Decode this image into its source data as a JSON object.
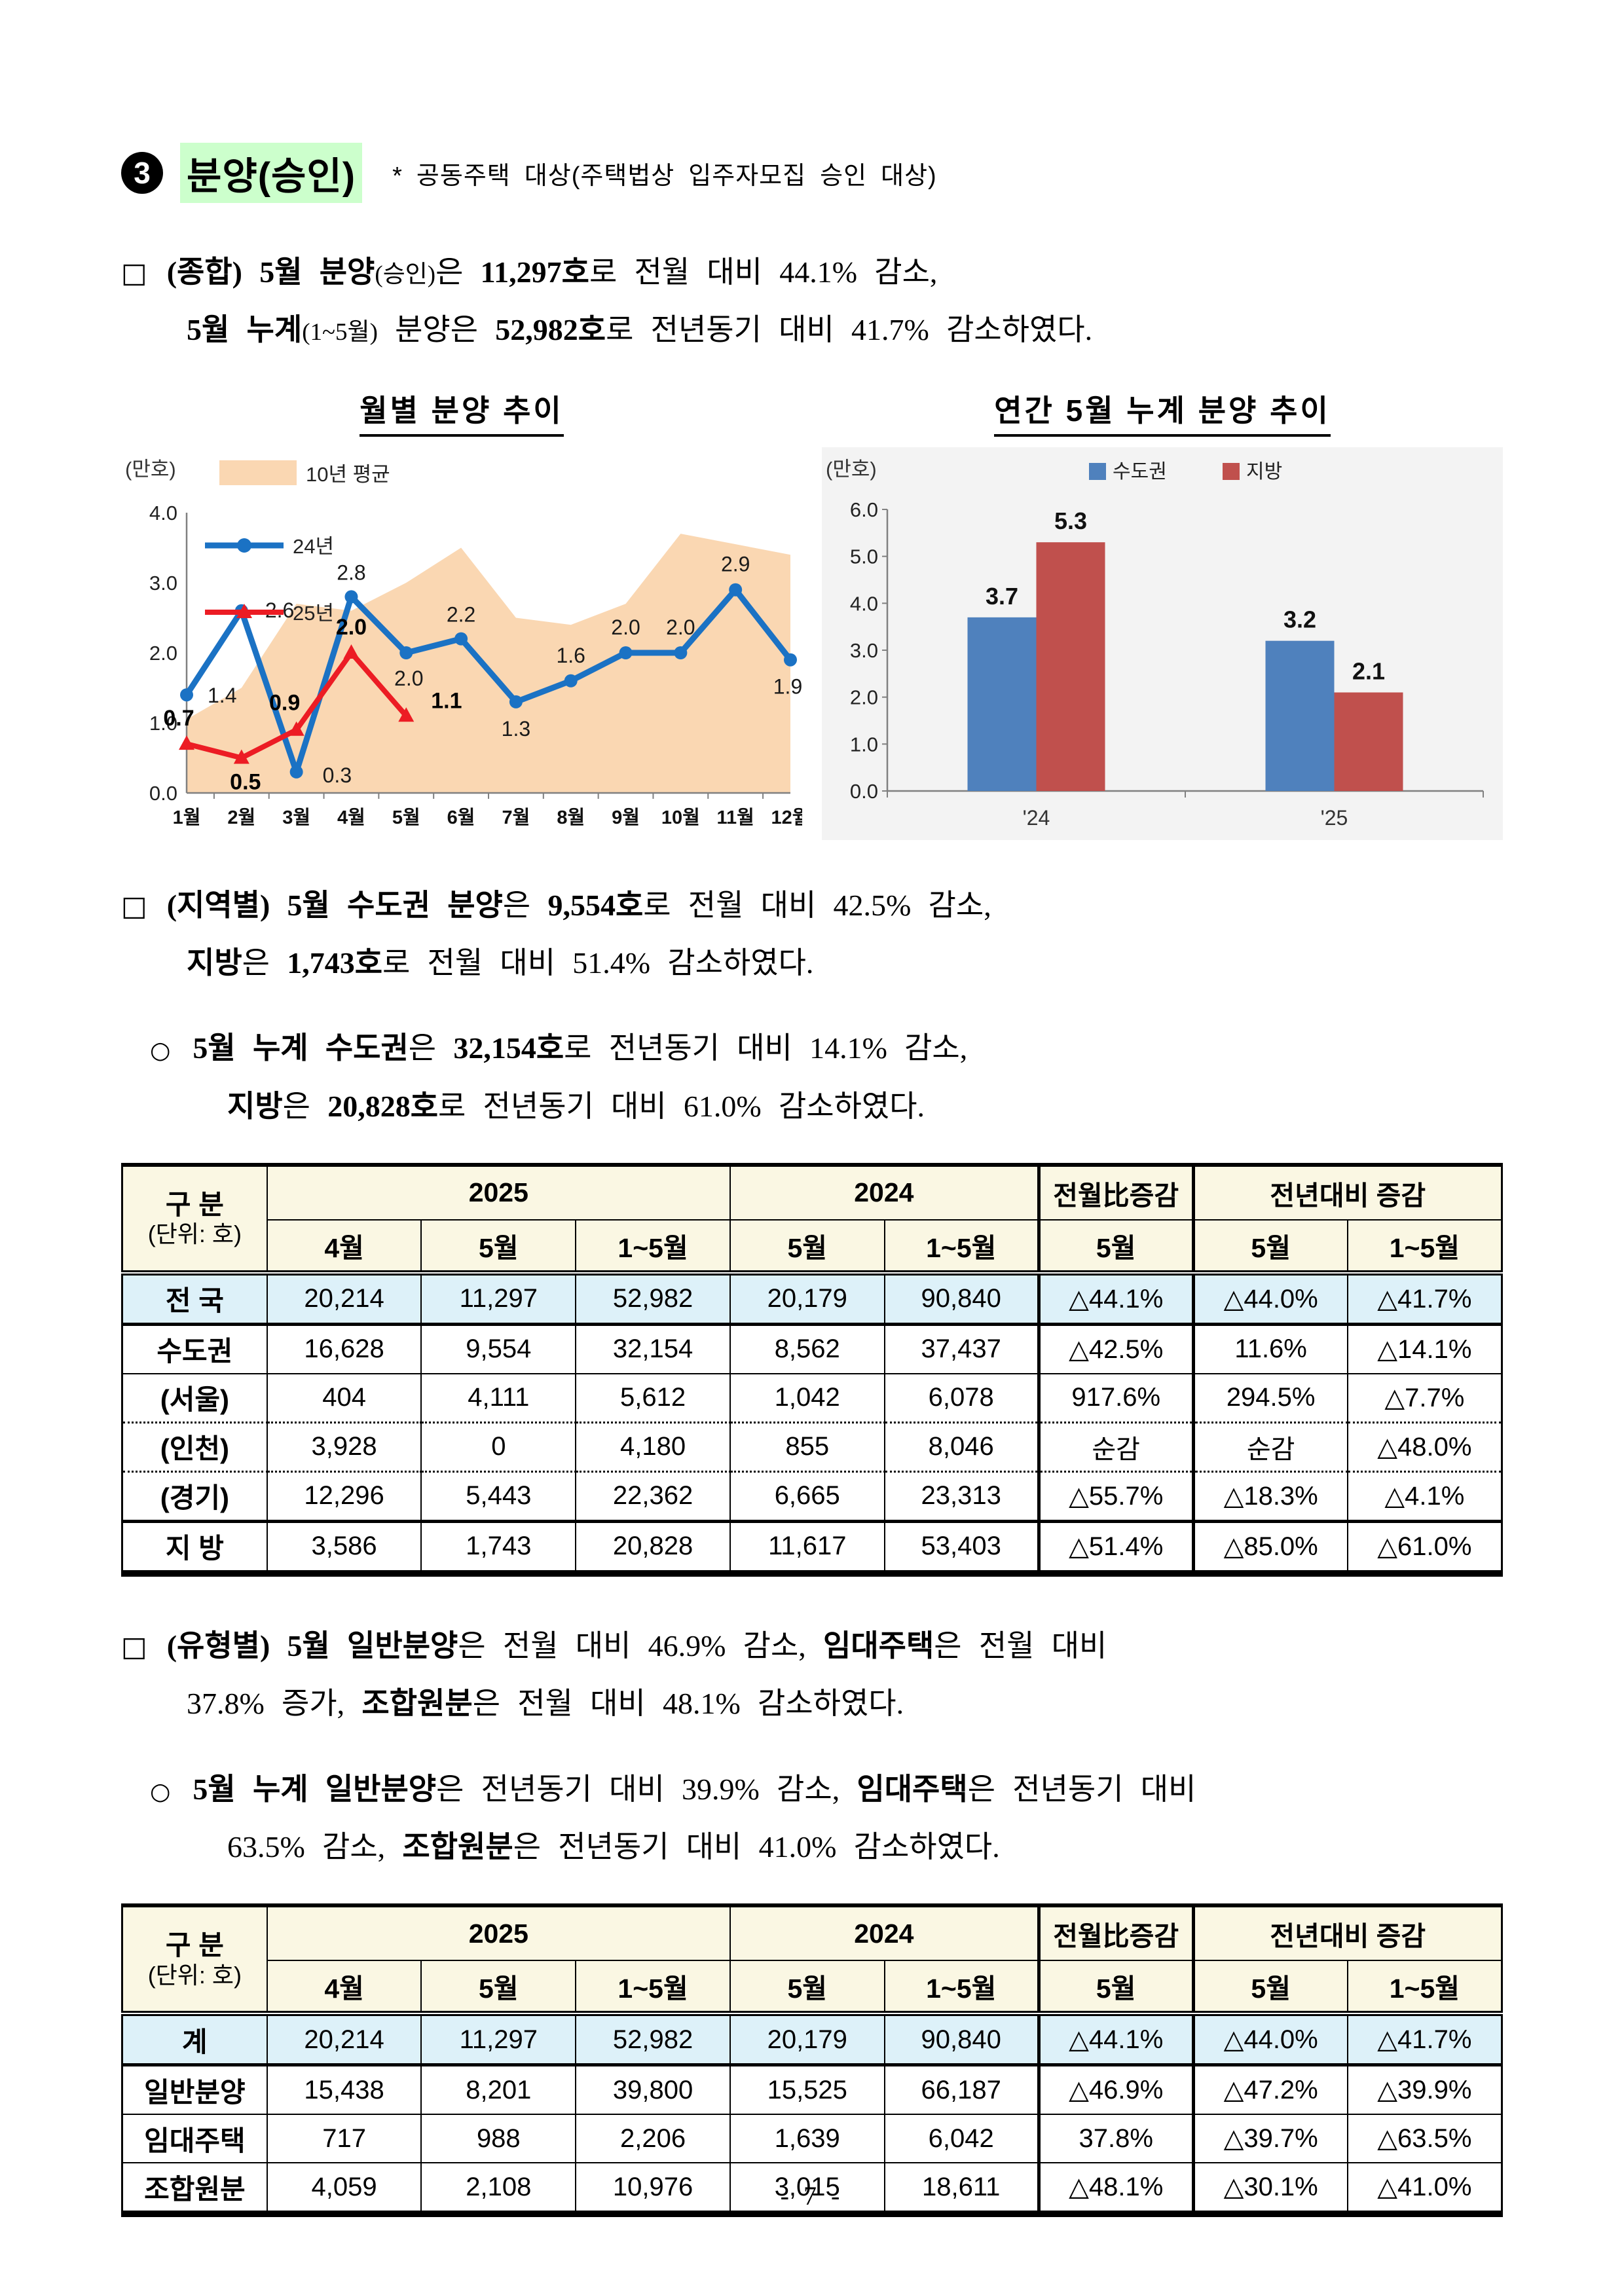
{
  "header": {
    "number": "3",
    "title": "분양(승인)",
    "note": "* 공동주택 대상(주택법상 입주자모집 승인 대상)"
  },
  "bullets": {
    "square": "□",
    "circle": "○"
  },
  "paragraphs": {
    "p1": {
      "l1": [
        "(종합) ",
        "5월 분양",
        "(승인)",
        "은 ",
        "11,297호",
        "로 전월 대비 44.1% 감소,"
      ],
      "l2": [
        "5월 누계",
        "(1~5월)",
        " 분양은 ",
        "52,982호",
        "로 전년동기 대비 41.7% 감소하였다."
      ]
    },
    "p2": {
      "l1": [
        "(지역별) ",
        "5월 수도권 분양",
        "은 ",
        "9,554호",
        "로 전월 대비 42.5% 감소,"
      ],
      "l2": [
        "지방",
        "은 ",
        "1,743호",
        "로 전월 대비 51.4% 감소하였다."
      ]
    },
    "p3": {
      "l1": [
        "5월 누계 수도권",
        "은 ",
        "32,154호",
        "로 전년동기 대비 14.1% 감소,"
      ],
      "l2": [
        "지방",
        "은 ",
        "20,828호",
        "로 전년동기 대비 61.0% 감소하였다."
      ]
    },
    "p4": {
      "l1": [
        "(유형별) ",
        "5월 일반분양",
        "은 전월 대비 46.9% 감소, ",
        "임대주택",
        "은 전월 대비"
      ],
      "l2": [
        "37.8% 증가, ",
        "조합원분",
        "은 전월 대비 48.1% 감소하였다."
      ]
    },
    "p5": {
      "l1": [
        "5월 누계 일반분양",
        "은 전년동기 대비 39.9% 감소, ",
        "임대주택",
        "은 전년동기 대비"
      ],
      "l2": [
        "63.5% 감소, ",
        "조합원분",
        "은 전년동기 대비 41.0% 감소하였다."
      ]
    }
  },
  "chart_data": [
    {
      "type": "line",
      "title": "월별 분양 추이",
      "unit_label": "(만호)",
      "x": [
        "1월",
        "2월",
        "3월",
        "4월",
        "5월",
        "6월",
        "7월",
        "8월",
        "9월",
        "10월",
        "11월",
        "12월"
      ],
      "ylim": [
        0,
        4.0
      ],
      "yticks": [
        "0.0",
        "1.0",
        "2.0",
        "3.0",
        "4.0"
      ],
      "grid": "off",
      "legend_position": "top-left-inside",
      "series": [
        {
          "name": "10년 평균",
          "type": "area",
          "color": "#FAD7B2",
          "values": [
            1.05,
            1.5,
            2.7,
            2.6,
            3.0,
            3.5,
            2.5,
            2.4,
            2.7,
            3.7,
            3.55,
            3.4
          ]
        },
        {
          "name": "24년",
          "type": "line",
          "marker": "circle",
          "color": "#1B72C4",
          "values": [
            1.4,
            2.6,
            0.3,
            2.8,
            2.0,
            2.2,
            1.3,
            1.6,
            2.0,
            2.0,
            2.9,
            1.9
          ]
        },
        {
          "name": "25년",
          "type": "line",
          "marker": "triangle",
          "color": "#EC1C24",
          "values": [
            0.7,
            0.5,
            0.9,
            2.0,
            1.1
          ]
        }
      ]
    },
    {
      "type": "bar",
      "title": "연간 5월 누계 분양 추이",
      "unit_label": "(만호)",
      "categories": [
        "'24",
        "'25"
      ],
      "ylim": [
        0,
        6.0
      ],
      "yticks": [
        "0.0",
        "1.0",
        "2.0",
        "3.0",
        "4.0",
        "5.0",
        "6.0"
      ],
      "grid": "off",
      "legend_position": "top-center",
      "series": [
        {
          "name": "수도권",
          "color": "#4F81BD",
          "values": [
            3.7,
            3.2
          ]
        },
        {
          "name": "지방",
          "color": "#C0504D",
          "values": [
            5.3,
            2.1
          ]
        }
      ]
    }
  ],
  "table_headers": {
    "col_group": "구 분",
    "col_unit": "(단위: 호)",
    "g2025": "2025",
    "g2024": "2024",
    "mom": "전월比증감",
    "yoy": "전년대비 증감",
    "sub": [
      "4월",
      "5월",
      "1~5월",
      "5월",
      "1~5월",
      "5월",
      "5월",
      "1~5월"
    ]
  },
  "table1": {
    "rows": [
      {
        "label": "전 국",
        "v": [
          "20,214",
          "11,297",
          "52,982",
          "20,179",
          "90,840",
          "△44.1%",
          "△44.0%",
          "△41.7%"
        ]
      },
      {
        "label": "수도권",
        "v": [
          "16,628",
          "9,554",
          "32,154",
          "8,562",
          "37,437",
          "△42.5%",
          "11.6%",
          "△14.1%"
        ]
      },
      {
        "label": "(서울)",
        "v": [
          "404",
          "4,111",
          "5,612",
          "1,042",
          "6,078",
          "917.6%",
          "294.5%",
          "△7.7%"
        ]
      },
      {
        "label": "(인천)",
        "v": [
          "3,928",
          "0",
          "4,180",
          "855",
          "8,046",
          "순감",
          "순감",
          "△48.0%"
        ]
      },
      {
        "label": "(경기)",
        "v": [
          "12,296",
          "5,443",
          "22,362",
          "6,665",
          "23,313",
          "△55.7%",
          "△18.3%",
          "△4.1%"
        ]
      },
      {
        "label": "지 방",
        "v": [
          "3,586",
          "1,743",
          "20,828",
          "11,617",
          "53,403",
          "△51.4%",
          "△85.0%",
          "△61.0%"
        ]
      }
    ]
  },
  "table2": {
    "rows": [
      {
        "label": "계",
        "v": [
          "20,214",
          "11,297",
          "52,982",
          "20,179",
          "90,840",
          "△44.1%",
          "△44.0%",
          "△41.7%"
        ]
      },
      {
        "label": "일반분양",
        "v": [
          "15,438",
          "8,201",
          "39,800",
          "15,525",
          "66,187",
          "△46.9%",
          "△47.2%",
          "△39.9%"
        ]
      },
      {
        "label": "임대주택",
        "v": [
          "717",
          "988",
          "2,206",
          "1,639",
          "6,042",
          "37.8%",
          "△39.7%",
          "△63.5%"
        ]
      },
      {
        "label": "조합원분",
        "v": [
          "4,059",
          "2,108",
          "10,976",
          "3,015",
          "18,611",
          "△48.1%",
          "△30.1%",
          "△41.0%"
        ]
      }
    ]
  },
  "footer": {
    "page_label": "- 7 -"
  }
}
